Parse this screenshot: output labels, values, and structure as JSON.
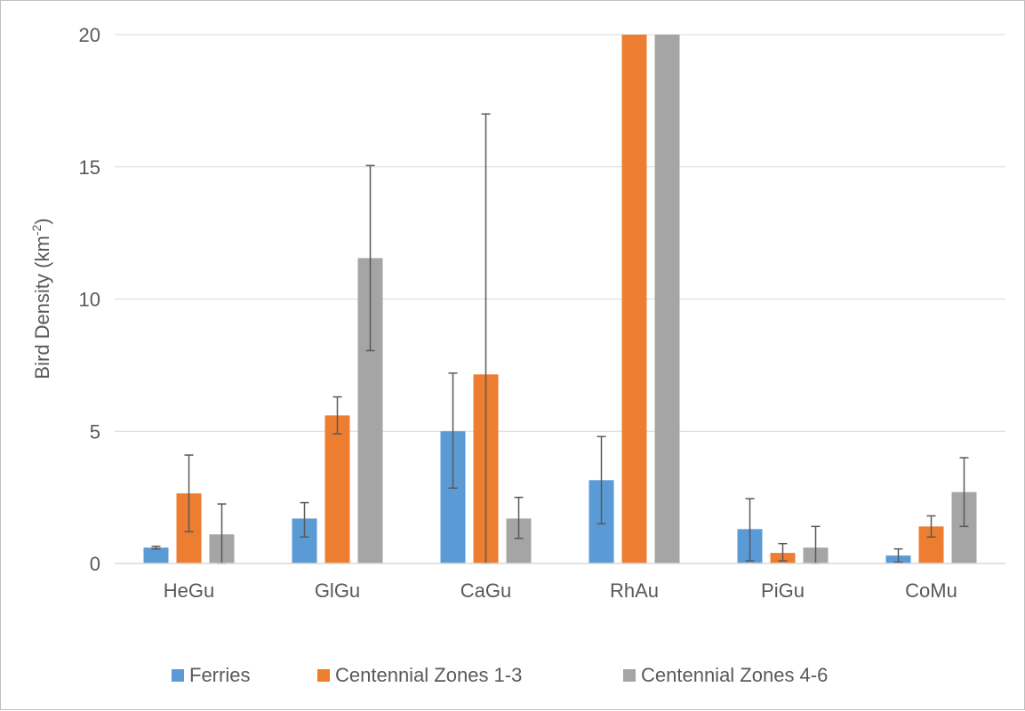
{
  "chart_data": {
    "type": "bar",
    "ylabel": "Bird Density (km",
    "ylabel_sup": "-2",
    "ylabel_close": ")",
    "ylim": [
      0,
      20
    ],
    "yticks": [
      0,
      5,
      10,
      15,
      20
    ],
    "grid": true,
    "legend_position": "bottom",
    "categories": [
      "HeGu",
      "GlGu",
      "CaGu",
      "RhAu",
      "PiGu",
      "CoMu"
    ],
    "series": [
      {
        "name": "Ferries",
        "color": "#5b9bd5",
        "values": [
          0.6,
          1.7,
          5.0,
          3.15,
          1.3,
          0.3
        ],
        "err_low": [
          0.55,
          1.0,
          2.85,
          1.5,
          0.1,
          0.05
        ],
        "err_high": [
          0.65,
          2.3,
          7.2,
          4.8,
          2.45,
          0.55
        ]
      },
      {
        "name": "Centennial Zones 1-3",
        "color": "#ed7d31",
        "values": [
          2.65,
          5.6,
          7.15,
          20,
          0.4,
          1.4
        ],
        "err_low": [
          1.2,
          4.9,
          0.0,
          null,
          0.1,
          1.0
        ],
        "err_high": [
          4.1,
          6.3,
          17.0,
          null,
          0.75,
          1.8
        ]
      },
      {
        "name": "Centennial Zones 4-6",
        "color": "#a5a5a5",
        "values": [
          1.1,
          11.55,
          1.7,
          20,
          0.6,
          2.7
        ],
        "err_low": [
          0.0,
          8.05,
          0.95,
          null,
          0.0,
          1.4
        ],
        "err_high": [
          2.25,
          15.05,
          2.5,
          null,
          1.4,
          4.0
        ]
      }
    ]
  }
}
